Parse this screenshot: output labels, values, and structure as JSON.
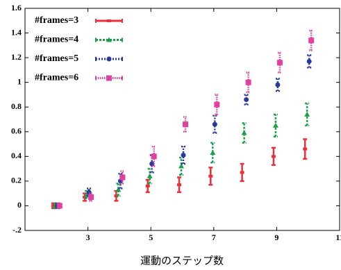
{
  "chart_data": {
    "type": "errorbar",
    "x_label": "運動のステップ数",
    "x": [
      2,
      3,
      4,
      5,
      6,
      7,
      8,
      9,
      10
    ],
    "xlim": [
      1,
      11
    ],
    "xticks": [
      3,
      5,
      7,
      9,
      11
    ],
    "ylim": [
      -0.2,
      1.6
    ],
    "yticks": [
      {
        "value": -0.2,
        "label": "-.2"
      },
      0,
      0.2,
      0.4,
      0.6,
      0.8,
      1,
      1.2,
      1.4,
      1.6
    ],
    "legend": "upper left",
    "series": [
      {
        "name": "#frames=3",
        "color": "#e8303a",
        "marker": "bar",
        "values": [
          0,
          0.07,
          0.08,
          0.16,
          0.17,
          0.24,
          0.27,
          0.4,
          0.46
        ],
        "errors": [
          0.02,
          0.03,
          0.04,
          0.05,
          0.06,
          0.07,
          0.07,
          0.07,
          0.08
        ]
      },
      {
        "name": "#frames=4",
        "color": "#1aa04a",
        "marker": "triangle",
        "values": [
          0,
          0.09,
          0.13,
          0.24,
          0.32,
          0.43,
          0.59,
          0.65,
          0.74
        ],
        "errors": [
          0.02,
          0.03,
          0.05,
          0.06,
          0.07,
          0.08,
          0.08,
          0.09,
          0.09
        ]
      },
      {
        "name": "#frames=5",
        "color": "#2a3a9c",
        "marker": "circle",
        "values": [
          0,
          0.11,
          0.2,
          0.34,
          0.41,
          0.66,
          0.86,
          0.98,
          1.17
        ],
        "errors": [
          0.02,
          0.03,
          0.06,
          0.07,
          0.07,
          0.07,
          0.04,
          0.05,
          0.05
        ]
      },
      {
        "name": "#frames=6",
        "color": "#e040a0",
        "marker": "square",
        "values": [
          0,
          0.07,
          0.23,
          0.4,
          0.66,
          0.82,
          1.0,
          1.16,
          1.34
        ],
        "errors": [
          0.02,
          0.03,
          0.05,
          0.08,
          0.06,
          0.08,
          0.08,
          0.08,
          0.08
        ]
      }
    ]
  }
}
